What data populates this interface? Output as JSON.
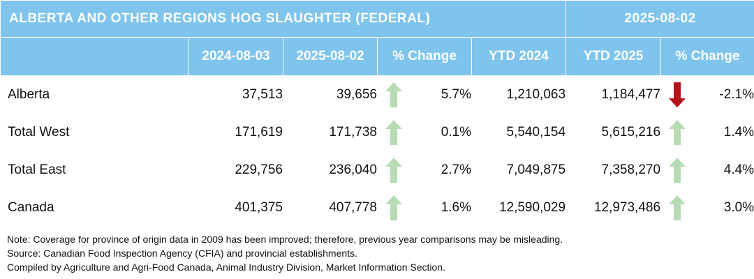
{
  "title": "ALBERTA AND OTHER REGIONS HOG SLAUGHTER (FEDERAL)",
  "report_date": "2025-08-02",
  "columns": [
    "",
    "2024-08-03",
    "2025-08-02",
    "% Change",
    "YTD 2024",
    "YTD 2025",
    "% Change"
  ],
  "rows": [
    {
      "region": "Alberta",
      "week_prev": "37,513",
      "week_curr": "39,656",
      "week_change": "5.7%",
      "week_trend": "up",
      "ytd_prev": "1,210,063",
      "ytd_curr": "1,184,477",
      "ytd_change": "-2.1%",
      "ytd_trend": "down"
    },
    {
      "region": "Total West",
      "week_prev": "171,619",
      "week_curr": "171,738",
      "week_change": "0.1%",
      "week_trend": "up",
      "ytd_prev": "5,540,154",
      "ytd_curr": "5,615,216",
      "ytd_change": "1.4%",
      "ytd_trend": "up"
    },
    {
      "region": "Total East",
      "week_prev": "229,756",
      "week_curr": "236,040",
      "week_change": "2.7%",
      "week_trend": "up",
      "ytd_prev": "7,049,875",
      "ytd_curr": "7,358,270",
      "ytd_change": "4.4%",
      "ytd_trend": "up"
    },
    {
      "region": "Canada",
      "week_prev": "401,375",
      "week_curr": "407,778",
      "week_change": "1.6%",
      "week_trend": "up",
      "ytd_prev": "12,590,029",
      "ytd_curr": "12,973,486",
      "ytd_change": "3.0%",
      "ytd_trend": "up"
    }
  ],
  "icons": {
    "up": "arrow-up-icon",
    "down": "arrow-down-icon"
  },
  "colors": {
    "header_bg": "#7fc4ec",
    "header_text": "#ffffff",
    "up_arrow": "#b7dcb5",
    "down_arrow": "#b5121b"
  },
  "notes": [
    "Note: Coverage for province of origin data in 2009 has been improved; therefore, previous year comparisons may be misleading.",
    "Source: Canadian Food Inspection Agency (CFIA) and provincial establishments.",
    "Compiled by Agriculture and Agri-Food Canada, Animal Industry Division, Market Information Section."
  ]
}
